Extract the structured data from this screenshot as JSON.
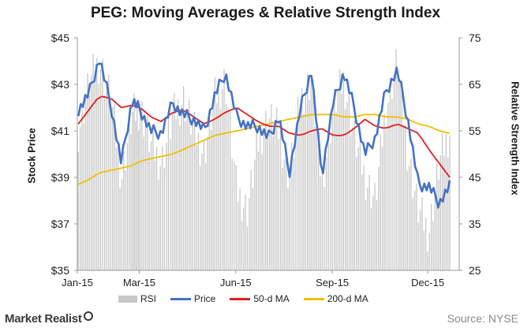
{
  "title": "PEG: Moving Averages & Relative Strength Index",
  "brand": "Market Realist",
  "source": "Source:  NYSE",
  "colors": {
    "rsi": "#c8c8c8",
    "price": "#4472c4",
    "ma50": "#e02020",
    "ma200": "#f2c000"
  },
  "chart_data": {
    "type": "line",
    "title": "PEG: Moving Averages & Relative Strength Index",
    "ylabel": "Stock Price",
    "y2label": "Relative Strength Index",
    "ylim": [
      35,
      45
    ],
    "y2lim": [
      25,
      75
    ],
    "yticks": [
      "$35",
      "$37",
      "$39",
      "$41",
      "$43",
      "$45"
    ],
    "y2ticks": [
      "25",
      "35",
      "45",
      "55",
      "65",
      "75"
    ],
    "xticks": [
      "Jan-15",
      "Mar-15",
      "Jun-15",
      "Sep-15",
      "Dec-15"
    ],
    "xtick_dates": [
      "2015-01-01",
      "2015-03-01",
      "2015-06-01",
      "2015-09-01",
      "2015-12-01"
    ],
    "x": [
      "2015-01-02",
      "2015-01-12",
      "2015-01-22",
      "2015-02-02",
      "2015-02-12",
      "2015-02-22",
      "2015-03-02",
      "2015-03-12",
      "2015-03-22",
      "2015-04-02",
      "2015-04-12",
      "2015-04-22",
      "2015-05-02",
      "2015-05-12",
      "2015-05-22",
      "2015-06-02",
      "2015-06-12",
      "2015-06-22",
      "2015-07-02",
      "2015-07-12",
      "2015-07-22",
      "2015-08-02",
      "2015-08-12",
      "2015-08-22",
      "2015-09-02",
      "2015-09-12",
      "2015-09-22",
      "2015-10-02",
      "2015-10-12",
      "2015-10-22",
      "2015-11-02",
      "2015-11-12",
      "2015-11-22",
      "2015-12-02",
      "2015-12-12",
      "2015-12-22"
    ],
    "series": [
      {
        "name": "RSI",
        "kind": "bar",
        "axis": "right",
        "values": [
          55,
          65,
          70,
          62,
          45,
          58,
          60,
          52,
          48,
          58,
          62,
          55,
          50,
          62,
          66,
          42,
          38,
          52,
          58,
          55,
          45,
          62,
          66,
          44,
          60,
          66,
          54,
          45,
          40,
          60,
          70,
          50,
          38,
          33,
          48,
          55
        ]
      },
      {
        "name": "Price",
        "kind": "line",
        "axis": "left",
        "values": [
          41.9,
          42.6,
          44.1,
          42.1,
          39.6,
          42.3,
          41.9,
          41.0,
          40.9,
          42.2,
          41.7,
          41.5,
          41.0,
          42.5,
          43.5,
          41.6,
          41.2,
          41.2,
          40.7,
          41.6,
          39.2,
          42.0,
          43.6,
          39.1,
          42.2,
          43.5,
          42.0,
          40.0,
          40.7,
          42.7,
          43.6,
          41.5,
          38.7,
          38.6,
          37.9,
          38.6
        ]
      },
      {
        "name": "50-d MA",
        "kind": "line",
        "axis": "left",
        "values": [
          41.3,
          41.9,
          42.5,
          42.4,
          42.0,
          42.1,
          42.0,
          41.6,
          41.4,
          41.8,
          41.9,
          41.6,
          41.3,
          41.5,
          41.8,
          42.0,
          41.7,
          41.4,
          41.2,
          41.2,
          40.9,
          40.8,
          41.0,
          41.1,
          40.8,
          40.8,
          41.1,
          41.5,
          41.2,
          41.1,
          41.3,
          41.1,
          40.9,
          40.2,
          39.6,
          39.0
        ]
      },
      {
        "name": "200-d MA",
        "kind": "line",
        "axis": "left",
        "values": [
          38.7,
          38.9,
          39.2,
          39.3,
          39.4,
          39.5,
          39.7,
          39.8,
          39.9,
          40.0,
          40.2,
          40.4,
          40.6,
          40.8,
          40.9,
          41.0,
          41.1,
          41.2,
          41.3,
          41.4,
          41.5,
          41.6,
          41.7,
          41.7,
          41.7,
          41.6,
          41.6,
          41.7,
          41.7,
          41.6,
          41.6,
          41.5,
          41.3,
          41.2,
          41.0,
          40.9
        ]
      }
    ],
    "grid": false,
    "legend": "bottom"
  }
}
